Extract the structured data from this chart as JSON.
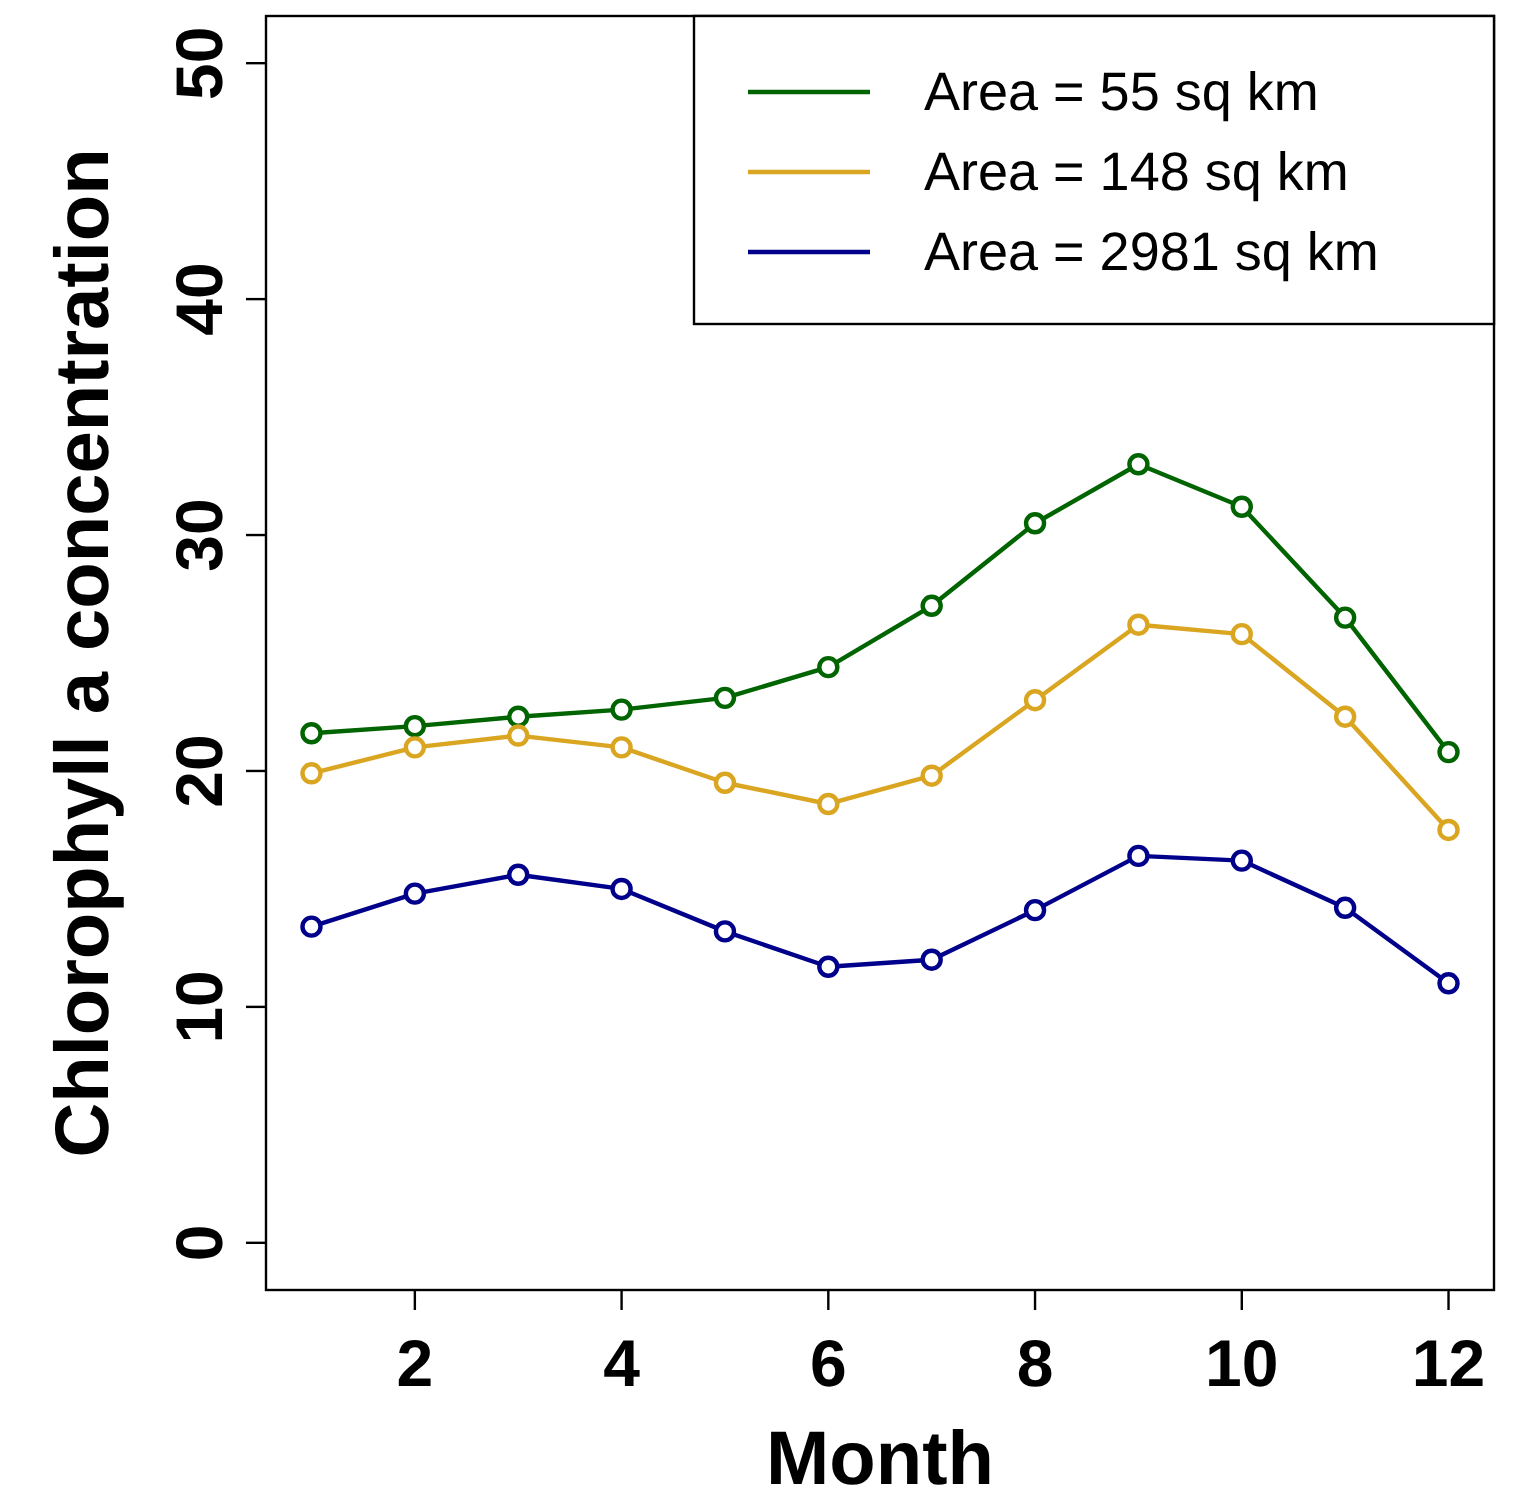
{
  "chart_data": {
    "type": "line",
    "xlabel": "Month",
    "ylabel": "Chlorophyll a concentration",
    "x": [
      1,
      2,
      3,
      4,
      5,
      6,
      7,
      8,
      9,
      10,
      11,
      12
    ],
    "series": [
      {
        "name": "Area = 55 sq km",
        "color": "#006400",
        "values": [
          21.6,
          21.9,
          22.3,
          22.6,
          23.1,
          24.4,
          27.0,
          30.5,
          33.0,
          31.2,
          26.5,
          20.8
        ]
      },
      {
        "name": "Area = 148 sq km",
        "color": "#daa520",
        "values": [
          19.9,
          21.0,
          21.5,
          21.0,
          19.5,
          18.6,
          19.8,
          23.0,
          26.2,
          25.8,
          22.3,
          17.5
        ]
      },
      {
        "name": "Area = 2981 sq km",
        "color": "#00008b",
        "values": [
          13.4,
          14.8,
          15.6,
          15.0,
          13.2,
          11.7,
          12.0,
          14.1,
          16.4,
          16.2,
          14.2,
          11.0
        ]
      }
    ],
    "xlim": [
      0.56,
      12.44
    ],
    "ylim": [
      -2,
      52
    ],
    "xticks": [
      2,
      4,
      6,
      8,
      10,
      12
    ],
    "yticks": [
      0,
      10,
      20,
      30,
      40,
      50
    ],
    "grid": false,
    "legend": "top right",
    "marker": "circle",
    "line_style": "solid"
  }
}
